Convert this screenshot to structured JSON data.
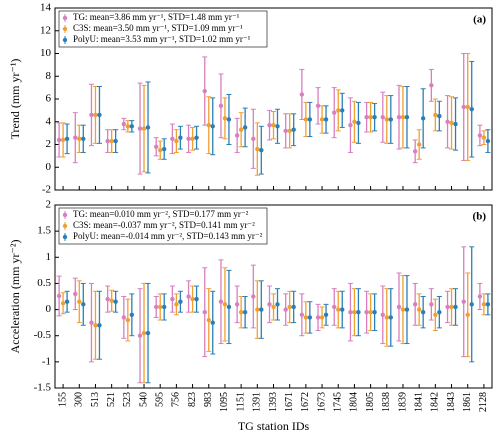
{
  "chart_data": [
    {
      "type": "errorbar",
      "panel_label": "(a)",
      "y_label": "Trend (mm yr⁻¹)",
      "ylim": [
        -2,
        14
      ],
      "yticks": [
        -2,
        0,
        2,
        4,
        6,
        8,
        10,
        12,
        14
      ],
      "series": [
        {
          "name": "TG: mean=3.86 mm yr⁻¹, STD=1.48 mm yr⁻¹",
          "color": "#d77fbf",
          "values": [
            2.4,
            2.6,
            4.6,
            2.3,
            3.8,
            3.4,
            1.8,
            2.5,
            2.5,
            6.7,
            5.4,
            2.8,
            2.5,
            3.7,
            3.2,
            6.4,
            5.4,
            4.8,
            3.7,
            4.4,
            4.4,
            4.4,
            1.4,
            7.2,
            4.0,
            5.3,
            2.8
          ],
          "errors": [
            1.5,
            2.2,
            2.7,
            1.0,
            0.5,
            4.0,
            0.8,
            1.3,
            1.2,
            3.0,
            2.8,
            1.5,
            2.6,
            1.3,
            1.5,
            2.2,
            1.6,
            2.2,
            2.4,
            1.3,
            2.2,
            2.8,
            1.0,
            1.4,
            2.3,
            4.7,
            0.9
          ]
        },
        {
          "name": "C3S: mean=3.50 mm yr⁻¹, STD=1.09 mm yr⁻¹",
          "color": "#f0a030",
          "values": [
            2.4,
            2.5,
            4.6,
            2.3,
            3.6,
            3.4,
            1.5,
            2.3,
            2.5,
            3.7,
            4.3,
            3.3,
            1.6,
            3.7,
            3.2,
            4.2,
            4.2,
            5.0,
            4.0,
            4.4,
            4.2,
            4.4,
            2.0,
            4.6,
            3.9,
            5.3,
            2.6
          ],
          "errors": [
            1.5,
            1.2,
            2.5,
            1.0,
            0.5,
            3.8,
            0.8,
            1.0,
            1.0,
            2.5,
            1.8,
            1.5,
            2.3,
            1.2,
            1.5,
            1.5,
            1.2,
            1.8,
            1.8,
            1.3,
            2.1,
            2.7,
            1.3,
            1.4,
            2.3,
            4.7,
            0.6
          ]
        },
        {
          "name": "PolyU: mean=3.53 mm yr⁻¹, STD=1.02 mm yr⁻¹",
          "color": "#2a7fb8",
          "values": [
            2.5,
            2.5,
            4.6,
            2.3,
            3.6,
            3.5,
            1.6,
            2.6,
            2.6,
            3.6,
            4.2,
            3.5,
            1.5,
            3.6,
            3.3,
            4.2,
            4.2,
            5.0,
            3.9,
            4.4,
            4.2,
            4.4,
            4.3,
            4.5,
            3.8,
            5.1,
            2.3
          ],
          "errors": [
            1.3,
            1.2,
            2.5,
            1.0,
            0.5,
            4.0,
            0.9,
            1.0,
            1.0,
            2.5,
            2.2,
            1.7,
            2.1,
            1.5,
            1.4,
            1.5,
            1.2,
            1.5,
            1.8,
            1.2,
            2.1,
            2.7,
            2.6,
            1.3,
            2.3,
            4.2,
            1.0
          ]
        }
      ]
    },
    {
      "type": "errorbar",
      "panel_label": "(b)",
      "y_label": "Acceleration (mm yr⁻²)",
      "x_label": "TG station IDs",
      "ylim": [
        -1.5,
        2
      ],
      "yticks": [
        -1.5,
        -1,
        -0.5,
        0,
        0.5,
        1,
        1.5,
        2
      ],
      "categories": [
        "155",
        "300",
        "513",
        "521",
        "523",
        "540",
        "595",
        "756",
        "823",
        "983",
        "1095",
        "1151",
        "1391",
        "1393",
        "1671",
        "1672",
        "1673",
        "1745",
        "1804",
        "1805",
        "1838",
        "1839",
        "1841",
        "1842",
        "1843",
        "1861",
        "2128"
      ],
      "series": [
        {
          "name": "TG: mean=0.010 mm yr⁻², STD=0.177 mm yr⁻²",
          "color": "#d77fbf",
          "values": [
            0.26,
            0.3,
            -0.25,
            0.2,
            -0.15,
            -0.5,
            0.05,
            0.2,
            0.25,
            -0.05,
            0.15,
            0.1,
            0.25,
            0.1,
            0,
            -0.1,
            -0.15,
            0.05,
            -0.05,
            -0.05,
            -0.1,
            0.05,
            0.1,
            0.1,
            0.05,
            0.15,
            0.25
          ],
          "errors": [
            0.38,
            0.3,
            0.75,
            0.25,
            0.4,
            0.9,
            0.2,
            0.25,
            0.3,
            0.85,
            0.8,
            0.35,
            0.6,
            0.35,
            0.3,
            0.4,
            0.25,
            0.35,
            0.55,
            0.4,
            0.55,
            0.65,
            0.4,
            0.3,
            0.3,
            1.05,
            0.25
          ]
        },
        {
          "name": "C3S: mean=-0.037 mm yr⁻², STD=0.141 mm yr⁻²",
          "color": "#f0a030",
          "values": [
            0.12,
            0.15,
            -0.3,
            0.17,
            -0.2,
            -0.45,
            0.05,
            0.1,
            0.2,
            -0.2,
            0.1,
            -0.05,
            0,
            0.05,
            0.05,
            -0.15,
            -0.15,
            0,
            -0.05,
            -0.05,
            -0.15,
            0,
            0,
            -0.1,
            0.05,
            -0.1,
            0.1
          ],
          "errors": [
            0.2,
            0.4,
            0.65,
            0.2,
            0.4,
            0.95,
            0.25,
            0.2,
            0.25,
            0.6,
            0.7,
            0.3,
            0.55,
            0.25,
            0.3,
            0.3,
            0.2,
            0.35,
            0.45,
            0.35,
            0.55,
            0.65,
            0.3,
            0.3,
            0.35,
            0.8,
            0.2
          ]
        },
        {
          "name": "PolyU: mean=-0.014 mm yr⁻², STD=0.143 mm yr⁻²",
          "color": "#2a7fb8",
          "values": [
            0.15,
            0.1,
            -0.3,
            0.15,
            -0.1,
            -0.45,
            0.05,
            0.15,
            0.2,
            -0.25,
            0.05,
            -0.05,
            0,
            0.1,
            0.05,
            -0.15,
            -0.1,
            0,
            -0.05,
            -0.05,
            -0.15,
            0,
            -0.05,
            -0.05,
            0.05,
            0.1,
            0.1
          ],
          "errors": [
            0.2,
            0.4,
            0.65,
            0.2,
            0.4,
            0.95,
            0.25,
            0.2,
            0.25,
            0.6,
            0.7,
            0.3,
            0.55,
            0.3,
            0.3,
            0.3,
            0.2,
            0.35,
            0.45,
            0.35,
            0.55,
            0.65,
            0.3,
            0.3,
            0.35,
            1.1,
            0.2
          ]
        }
      ]
    }
  ]
}
